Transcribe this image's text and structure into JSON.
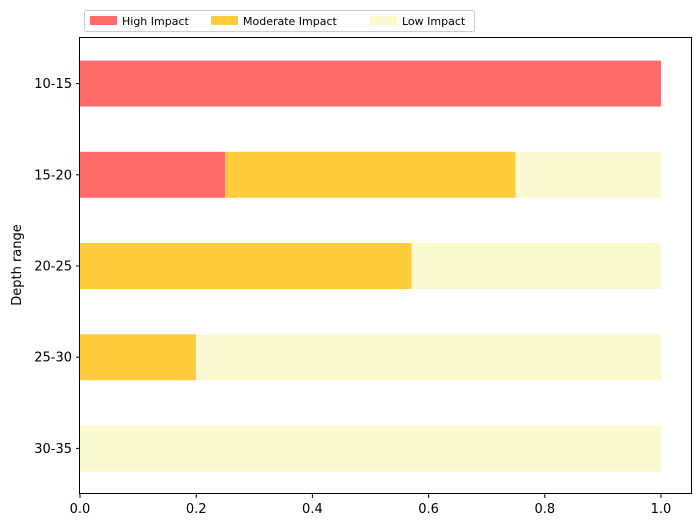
{
  "chart_data": {
    "type": "bar",
    "orientation": "horizontal",
    "stacked": true,
    "categories": [
      "10-15",
      "15-20",
      "20-25",
      "25-30",
      "30-35"
    ],
    "series": [
      {
        "name": "High Impact",
        "color": "#ff6b6b",
        "values": [
          1.0,
          0.25,
          0.0,
          0.0,
          0.0
        ]
      },
      {
        "name": "Moderate Impact",
        "color": "#ffcc3d",
        "values": [
          0.0,
          0.5,
          0.571,
          0.2,
          0.0
        ]
      },
      {
        "name": "Low Impact",
        "color": "#fafad0",
        "values": [
          0.0,
          0.25,
          0.429,
          0.8,
          1.0
        ]
      }
    ],
    "title": "",
    "xlabel": "",
    "ylabel": "Depth range",
    "xlim": [
      0,
      1.05
    ],
    "xticks": [
      0.0,
      0.2,
      0.4,
      0.6,
      0.8,
      1.0
    ],
    "xtick_labels": [
      "0.0",
      "0.2",
      "0.4",
      "0.6",
      "0.8",
      "1.0"
    ],
    "grid": false,
    "legend": {
      "placement": "top-left, outside above axes",
      "columns": 3
    }
  }
}
